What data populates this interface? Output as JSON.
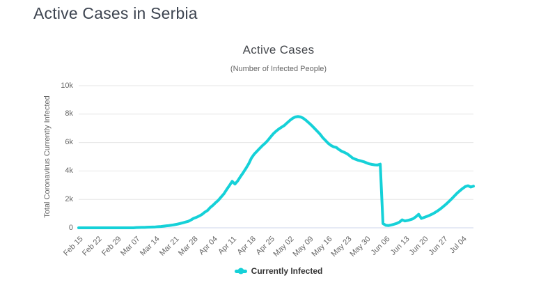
{
  "page": {
    "title": "Active Cases in Serbia"
  },
  "chart_data": {
    "type": "line",
    "title": "Active Cases",
    "subtitle": "(Number of Infected People)",
    "ylabel": "Total Coronavirus Currently Infected",
    "xlabel": "",
    "ylim": [
      0,
      10000
    ],
    "grid": "horizontal",
    "legend_position": "bottom-center",
    "colors": {
      "gridline": "#e6e6e6",
      "axis_line": "#ccd6eb"
    },
    "yticks": [
      {
        "label": "0",
        "value": 0
      },
      {
        "label": "2k",
        "value": 2000
      },
      {
        "label": "4k",
        "value": 4000
      },
      {
        "label": "6k",
        "value": 6000
      },
      {
        "label": "8k",
        "value": 8000
      },
      {
        "label": "10k",
        "value": 10000
      }
    ],
    "x_tick_labels": [
      "Feb 15",
      "Feb 22",
      "Feb 29",
      "Mar 07",
      "Mar 14",
      "Mar 21",
      "Mar 28",
      "Apr 04",
      "Apr 11",
      "Apr 18",
      "Apr 25",
      "May 02",
      "May 09",
      "May 16",
      "May 23",
      "May 30",
      "Jun 06",
      "Jun 13",
      "Jun 20",
      "Jun 27",
      "Jul 04"
    ],
    "x_tick_interval_days": 7,
    "series": [
      {
        "name": "Currently Infected",
        "color": "#15d1d8",
        "interval": "daily",
        "start_date": "Feb 15",
        "end_date": "Jul 08",
        "values": [
          0,
          0,
          0,
          0,
          0,
          0,
          0,
          0,
          0,
          0,
          0,
          0,
          0,
          0,
          0,
          0,
          0,
          0,
          0,
          0,
          1,
          18,
          24,
          30,
          33,
          40,
          48,
          56,
          64,
          77,
          93,
          115,
          140,
          160,
          188,
          222,
          257,
          302,
          352,
          406,
          457,
          558,
          673,
          741,
          835,
          945,
          1098,
          1220,
          1430,
          1590,
          1780,
          1950,
          2180,
          2400,
          2700,
          2980,
          3270,
          3080,
          3300,
          3600,
          3880,
          4180,
          4500,
          4900,
          5180,
          5380,
          5580,
          5780,
          5950,
          6150,
          6390,
          6620,
          6800,
          6950,
          7080,
          7200,
          7380,
          7550,
          7700,
          7800,
          7830,
          7800,
          7700,
          7550,
          7380,
          7200,
          7000,
          6800,
          6600,
          6350,
          6150,
          5950,
          5800,
          5700,
          5650,
          5500,
          5380,
          5300,
          5200,
          5050,
          4900,
          4820,
          4750,
          4700,
          4650,
          4570,
          4500,
          4460,
          4430,
          4420,
          4480,
          300,
          180,
          160,
          200,
          250,
          310,
          400,
          560,
          480,
          520,
          570,
          640,
          780,
          950,
          660,
          730,
          800,
          880,
          970,
          1080,
          1200,
          1340,
          1500,
          1660,
          1840,
          2030,
          2230,
          2430,
          2600,
          2760,
          2900,
          2960,
          2870,
          2930
        ]
      }
    ]
  }
}
